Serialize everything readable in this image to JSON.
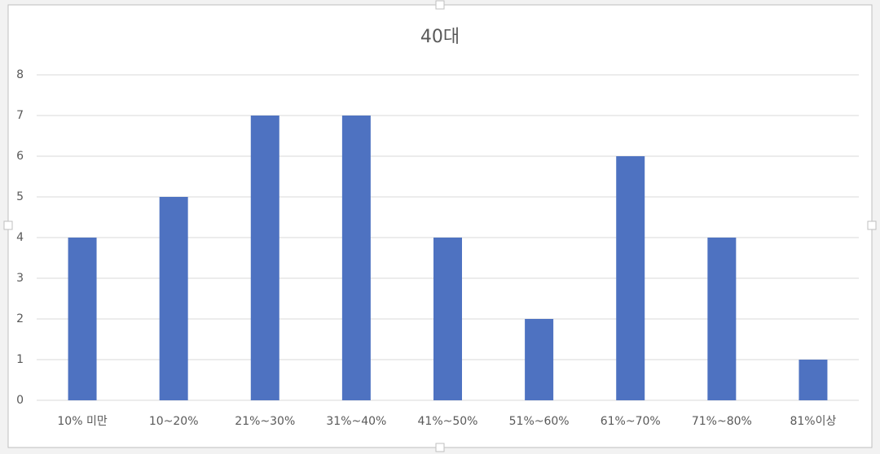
{
  "chart_data": {
    "type": "bar",
    "title": "40대",
    "categories": [
      "10% 미만",
      "10~20%",
      "21%~30%",
      "31%~40%",
      "41%~50%",
      "51%~60%",
      "61%~70%",
      "71%~80%",
      "81%이상"
    ],
    "values": [
      4,
      5,
      7,
      7,
      4,
      2,
      6,
      4,
      1
    ],
    "color": "#4e72c1",
    "ylim": [
      0,
      8
    ],
    "yticks": [
      0,
      1,
      2,
      3,
      4,
      5,
      6,
      7,
      8
    ],
    "grid": true
  }
}
